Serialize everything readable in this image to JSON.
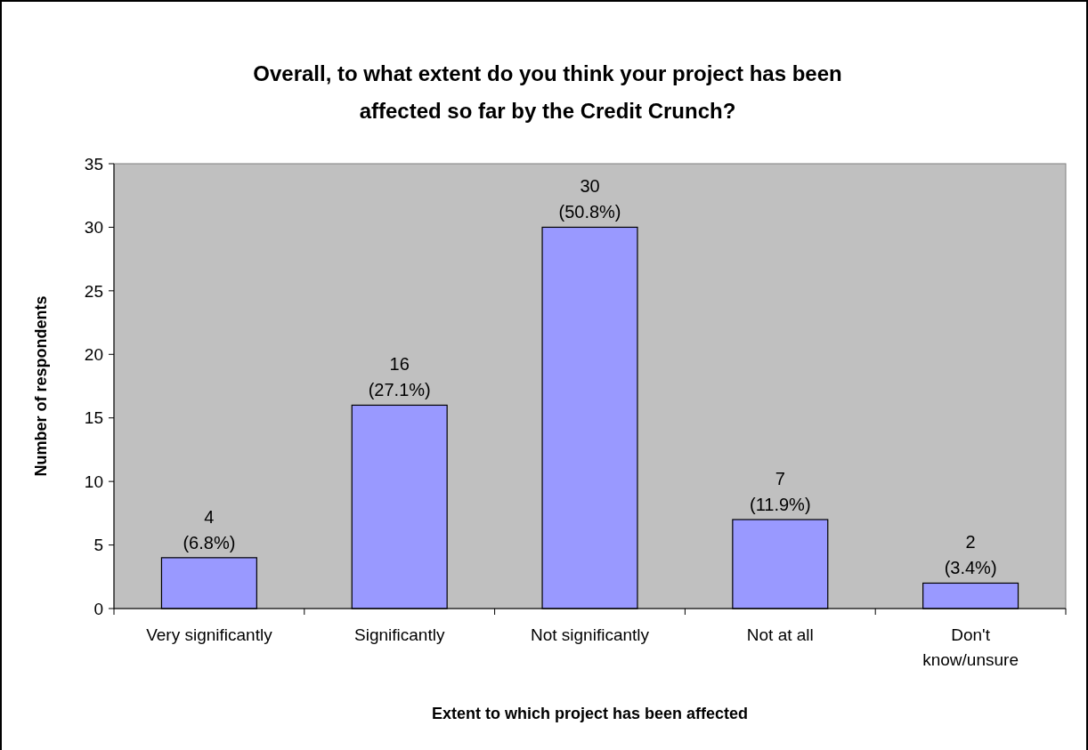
{
  "chart_data": {
    "type": "bar",
    "title": "Overall, to what extent do you think your project has been affected so far by the Credit Crunch?",
    "xlabel": "Extent to which project has been affected",
    "ylabel": "Number of respondents",
    "categories": [
      "Very significantly",
      "Significantly",
      "Not significantly",
      "Not at all",
      "Don't know/unsure"
    ],
    "values": [
      4,
      16,
      30,
      7,
      2
    ],
    "value_labels": [
      "4\n(6.8%)",
      "16\n(27.1%)",
      "30\n(50.8%)",
      "7\n(11.9%)",
      "2\n(3.4%)"
    ],
    "color": "#9999ff",
    "ylim": [
      0,
      35
    ],
    "yticks": [
      0,
      5,
      10,
      15,
      20,
      25,
      30,
      35
    ],
    "grid": false
  }
}
